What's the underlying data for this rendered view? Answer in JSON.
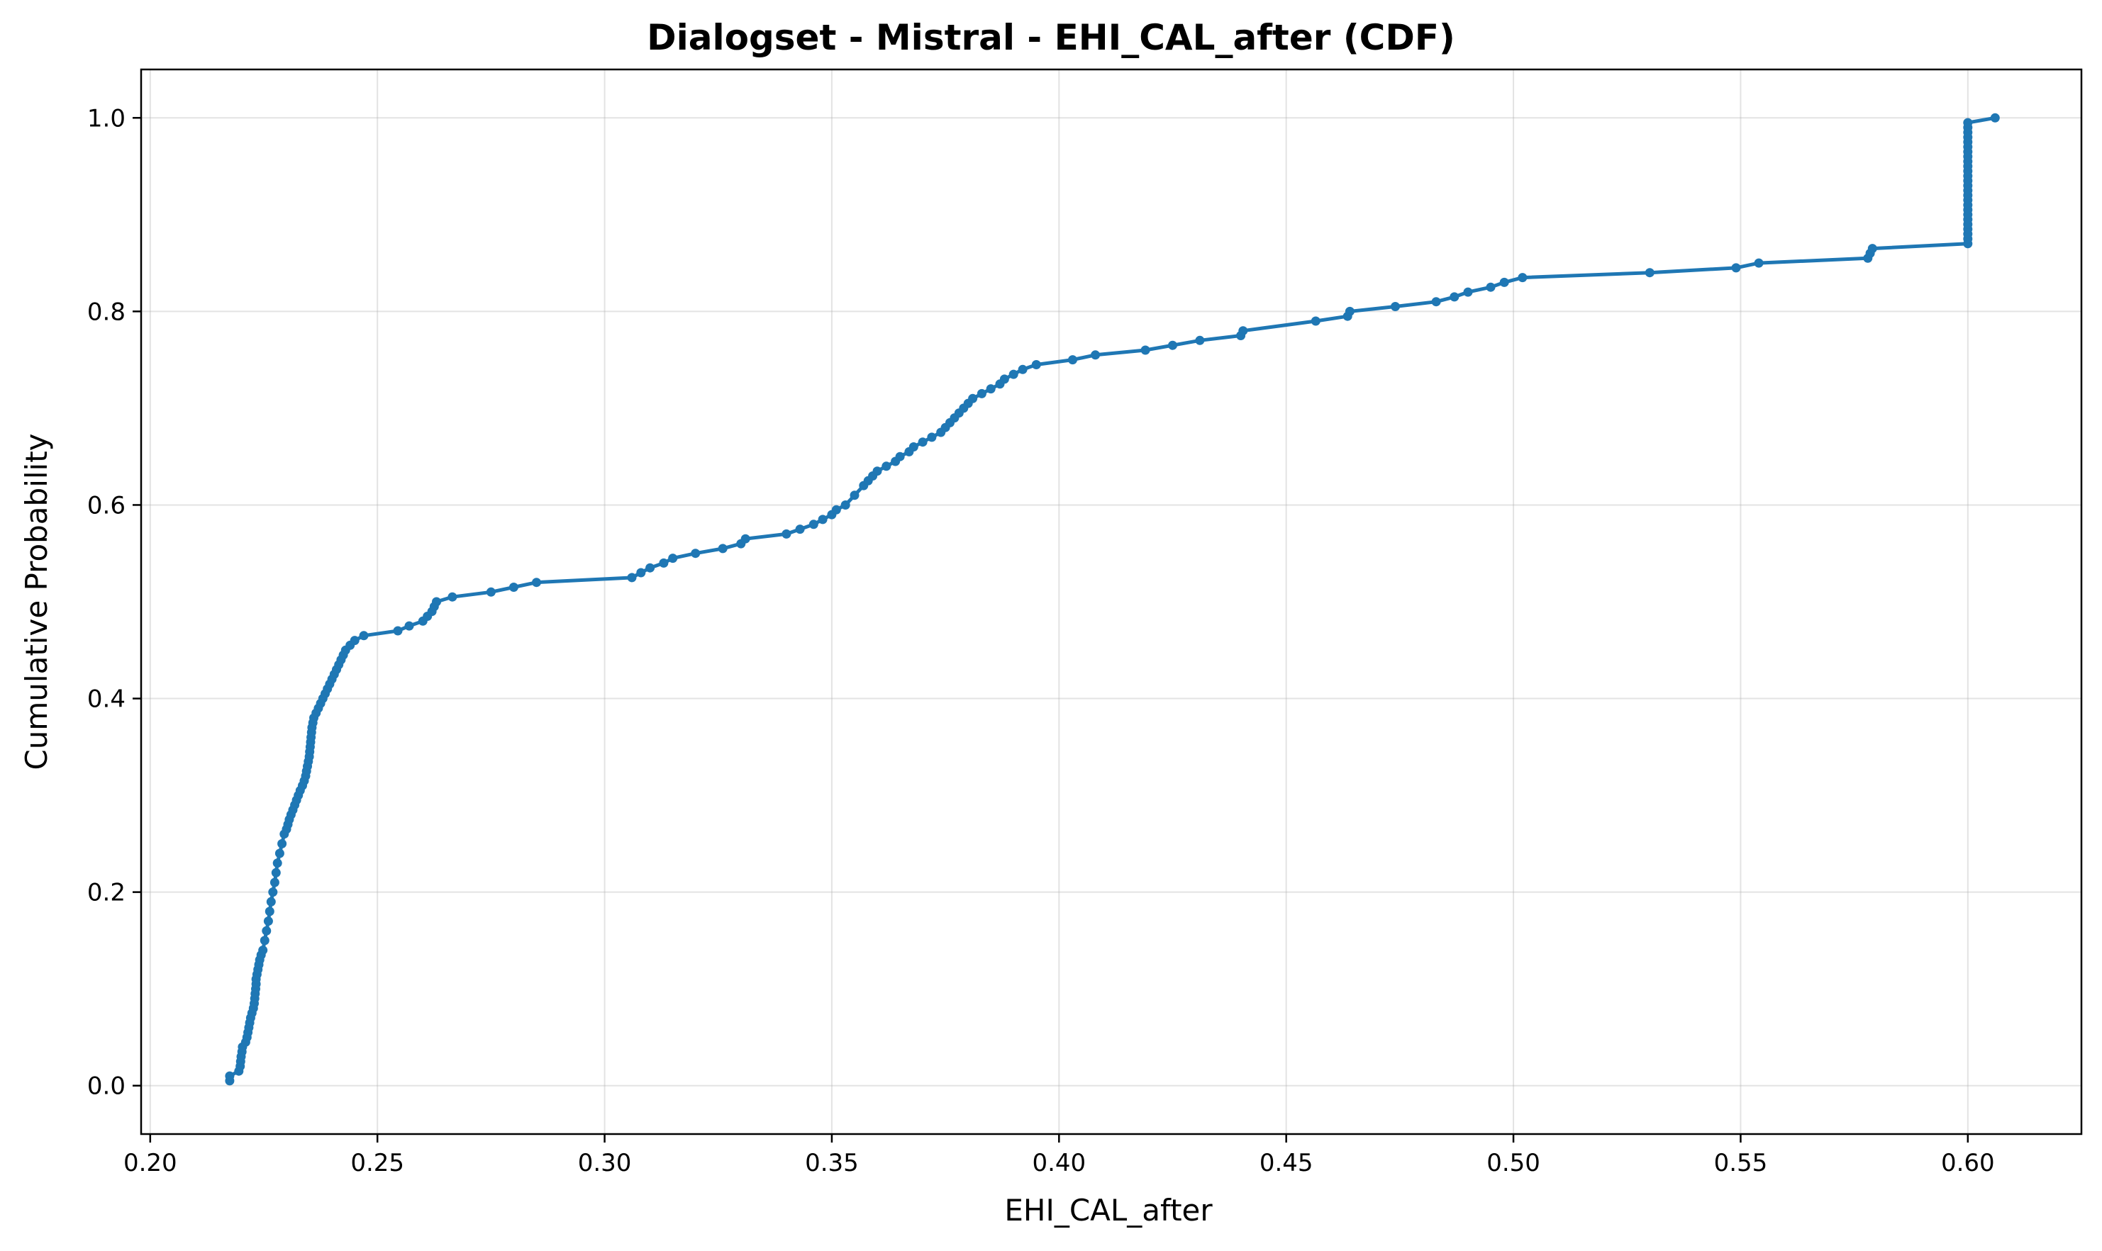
{
  "chart_data": {
    "type": "line",
    "title": "Dialogset - Mistral - EHI_CAL_after (CDF)",
    "xlabel": "EHI_CAL_after",
    "ylabel": "Cumulative Probability",
    "xlim": [
      0.198,
      0.625
    ],
    "ylim": [
      -0.05,
      1.05
    ],
    "x_ticks": [
      0.2,
      0.25,
      0.3,
      0.35,
      0.4,
      0.45,
      0.5,
      0.55,
      0.6
    ],
    "x_tick_labels": [
      "0.20",
      "0.25",
      "0.30",
      "0.35",
      "0.40",
      "0.45",
      "0.50",
      "0.55",
      "0.60"
    ],
    "y_ticks": [
      0.0,
      0.2,
      0.4,
      0.6,
      0.8,
      1.0
    ],
    "y_tick_labels": [
      "0.0",
      "0.2",
      "0.4",
      "0.6",
      "0.8",
      "1.0"
    ],
    "grid": true,
    "color": "#1f77b4",
    "series": [
      {
        "x": [
          0.2175,
          0.2175,
          0.2195,
          0.2198,
          0.2199,
          0.22,
          0.2202,
          0.2203,
          0.221,
          0.2213,
          0.2215,
          0.2217,
          0.2219,
          0.2221,
          0.2224,
          0.2227,
          0.2229,
          0.223,
          0.2231,
          0.2232,
          0.2233,
          0.2233,
          0.2235,
          0.2237,
          0.2239,
          0.2241,
          0.2244,
          0.2248,
          0.2252,
          0.2256,
          0.226,
          0.2263,
          0.2266,
          0.227,
          0.2274,
          0.2277,
          0.228,
          0.2285,
          0.229,
          0.2295,
          0.23,
          0.2303,
          0.2306,
          0.231,
          0.2314,
          0.2318,
          0.2322,
          0.2326,
          0.233,
          0.2335,
          0.2339,
          0.2342,
          0.2344,
          0.2346,
          0.2348,
          0.235,
          0.2351,
          0.2352,
          0.2353,
          0.2354,
          0.2355,
          0.2356,
          0.2358,
          0.236,
          0.2365,
          0.237,
          0.2375,
          0.238,
          0.2385,
          0.239,
          0.2395,
          0.24,
          0.2405,
          0.241,
          0.2415,
          0.242,
          0.2425,
          0.243,
          0.244,
          0.245,
          0.247,
          0.2545,
          0.257,
          0.26,
          0.261,
          0.262,
          0.2625,
          0.263,
          0.2665,
          0.275,
          0.28,
          0.285,
          0.306,
          0.308,
          0.31,
          0.313,
          0.315,
          0.32,
          0.326,
          0.33,
          0.331,
          0.34,
          0.343,
          0.346,
          0.348,
          0.35,
          0.351,
          0.353,
          0.355,
          0.357,
          0.358,
          0.359,
          0.36,
          0.362,
          0.364,
          0.365,
          0.367,
          0.368,
          0.37,
          0.372,
          0.374,
          0.375,
          0.376,
          0.377,
          0.378,
          0.379,
          0.38,
          0.381,
          0.383,
          0.385,
          0.387,
          0.388,
          0.39,
          0.392,
          0.395,
          0.403,
          0.408,
          0.419,
          0.425,
          0.431,
          0.44,
          0.4405,
          0.4565,
          0.4635,
          0.464,
          0.474,
          0.483,
          0.487,
          0.49,
          0.495,
          0.498,
          0.502,
          0.53,
          0.549,
          0.554,
          0.578,
          0.5785,
          0.579,
          0.6,
          0.6,
          0.6,
          0.6,
          0.6,
          0.6,
          0.6,
          0.6,
          0.6,
          0.6,
          0.6,
          0.6,
          0.6,
          0.6,
          0.6,
          0.6,
          0.6,
          0.6,
          0.6,
          0.6,
          0.6,
          0.6,
          0.6,
          0.6,
          0.6,
          0.6,
          0.606
        ],
        "y": [
          0.005,
          0.01,
          0.015,
          0.02,
          0.025,
          0.03,
          0.035,
          0.04,
          0.045,
          0.05,
          0.055,
          0.06,
          0.065,
          0.07,
          0.075,
          0.08,
          0.085,
          0.09,
          0.095,
          0.1,
          0.105,
          0.11,
          0.115,
          0.12,
          0.125,
          0.13,
          0.135,
          0.14,
          0.15,
          0.16,
          0.17,
          0.18,
          0.19,
          0.2,
          0.21,
          0.22,
          0.23,
          0.24,
          0.25,
          0.26,
          0.265,
          0.27,
          0.275,
          0.28,
          0.285,
          0.29,
          0.295,
          0.3,
          0.305,
          0.31,
          0.315,
          0.32,
          0.325,
          0.33,
          0.335,
          0.34,
          0.345,
          0.35,
          0.355,
          0.36,
          0.365,
          0.37,
          0.375,
          0.38,
          0.385,
          0.39,
          0.395,
          0.4,
          0.405,
          0.41,
          0.415,
          0.42,
          0.425,
          0.43,
          0.435,
          0.44,
          0.445,
          0.45,
          0.455,
          0.46,
          0.465,
          0.47,
          0.475,
          0.48,
          0.485,
          0.49,
          0.495,
          0.5,
          0.505,
          0.51,
          0.515,
          0.52,
          0.525,
          0.53,
          0.535,
          0.54,
          0.545,
          0.55,
          0.555,
          0.56,
          0.565,
          0.57,
          0.575,
          0.58,
          0.585,
          0.59,
          0.595,
          0.6,
          0.61,
          0.62,
          0.625,
          0.63,
          0.635,
          0.64,
          0.645,
          0.65,
          0.655,
          0.66,
          0.665,
          0.67,
          0.675,
          0.68,
          0.685,
          0.69,
          0.695,
          0.7,
          0.705,
          0.71,
          0.715,
          0.72,
          0.725,
          0.73,
          0.735,
          0.74,
          0.745,
          0.75,
          0.755,
          0.76,
          0.765,
          0.77,
          0.775,
          0.78,
          0.79,
          0.795,
          0.8,
          0.805,
          0.81,
          0.815,
          0.82,
          0.825,
          0.83,
          0.835,
          0.84,
          0.845,
          0.85,
          0.855,
          0.86,
          0.865,
          0.87,
          0.875,
          0.88,
          0.885,
          0.89,
          0.895,
          0.9,
          0.905,
          0.91,
          0.915,
          0.92,
          0.925,
          0.93,
          0.935,
          0.94,
          0.945,
          0.95,
          0.955,
          0.96,
          0.965,
          0.97,
          0.975,
          0.98,
          0.985,
          0.99,
          0.995,
          1.0
        ]
      }
    ]
  }
}
